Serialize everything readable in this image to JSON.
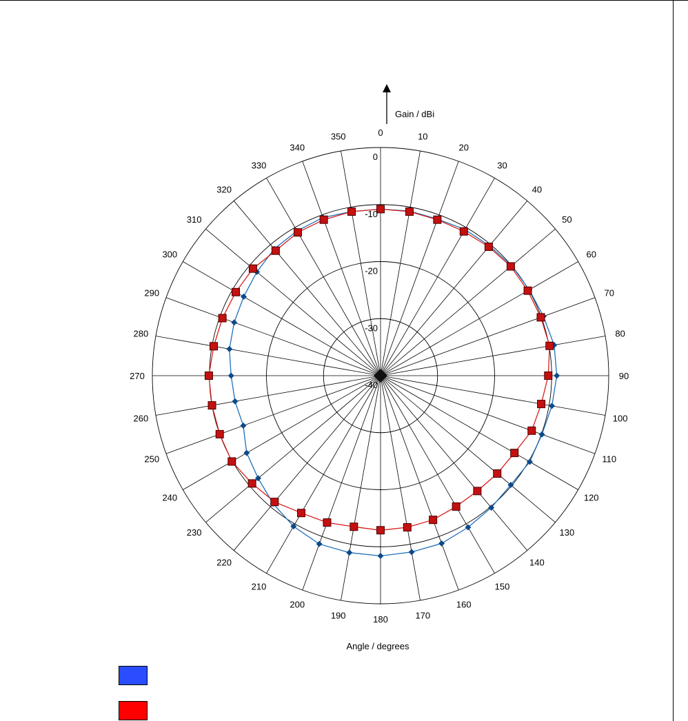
{
  "colors": {
    "series_blue": "#1f6fb8",
    "marker_blue": "#0b4a8a",
    "series_red": "#d81b1b",
    "marker_red": "#c41010",
    "legend_blue": "#2a4dff",
    "legend_red": "#ff0000",
    "grid": "#000000"
  },
  "chart_data": {
    "type": "polar-line",
    "ylabel": "Gain / dBi",
    "xlabel": "Angle / degrees",
    "rlim": [
      -40,
      0
    ],
    "radial_ticks": [
      0,
      -10,
      -20,
      -30,
      -40
    ],
    "angle_ticks": [
      0,
      10,
      20,
      30,
      40,
      50,
      60,
      70,
      80,
      90,
      100,
      110,
      120,
      130,
      140,
      150,
      160,
      170,
      180,
      190,
      200,
      210,
      220,
      230,
      240,
      250,
      260,
      270,
      280,
      290,
      300,
      310,
      320,
      330,
      340,
      350
    ],
    "grid": true,
    "series": [
      {
        "color": "blue",
        "marker": "diamond",
        "angles": [
          0,
          10,
          20,
          30,
          40,
          50,
          60,
          70,
          80,
          90,
          100,
          110,
          120,
          130,
          140,
          150,
          160,
          170,
          180,
          190,
          200,
          210,
          220,
          230,
          240,
          250,
          260,
          270,
          280,
          290,
          300,
          310,
          320,
          330,
          340,
          350
        ],
        "values": [
          -10.8,
          -10.7,
          -10.8,
          -10.4,
          -10.3,
          -10.0,
          -9.9,
          -9.6,
          -9.1,
          -9.1,
          -9.5,
          -9.9,
          -9.8,
          -10.2,
          -9.8,
          -9.3,
          -8.7,
          -8.6,
          -8.4,
          -8.5,
          -8.6,
          -9.5,
          -10.7,
          -12.0,
          -12.9,
          -14.4,
          -14.1,
          -13.8,
          -13.1,
          -12.7,
          -12.3,
          -11.7,
          -11.0,
          -10.7,
          -10.5,
          -10.8
        ]
      },
      {
        "color": "red",
        "marker": "square",
        "angles": [
          0,
          10,
          20,
          30,
          40,
          50,
          60,
          70,
          80,
          90,
          100,
          110,
          120,
          130,
          140,
          150,
          160,
          170,
          180,
          190,
          200,
          210,
          220,
          230,
          240,
          250,
          260,
          270,
          280,
          290,
          300,
          310,
          320,
          330,
          340,
          350
        ],
        "values": [
          -10.8,
          -10.8,
          -10.9,
          -10.8,
          -10.5,
          -10.2,
          -10.2,
          -10.1,
          -9.9,
          -10.6,
          -11.4,
          -11.8,
          -12.9,
          -13.3,
          -13.6,
          -13.5,
          -13.1,
          -13.0,
          -12.9,
          -13.1,
          -12.6,
          -12.2,
          -11.1,
          -10.6,
          -9.9,
          -10.0,
          -10.0,
          -9.9,
          -10.3,
          -10.5,
          -10.7,
          -10.8,
          -11.4,
          -11.0,
          -10.9,
          -10.8
        ]
      }
    ]
  }
}
